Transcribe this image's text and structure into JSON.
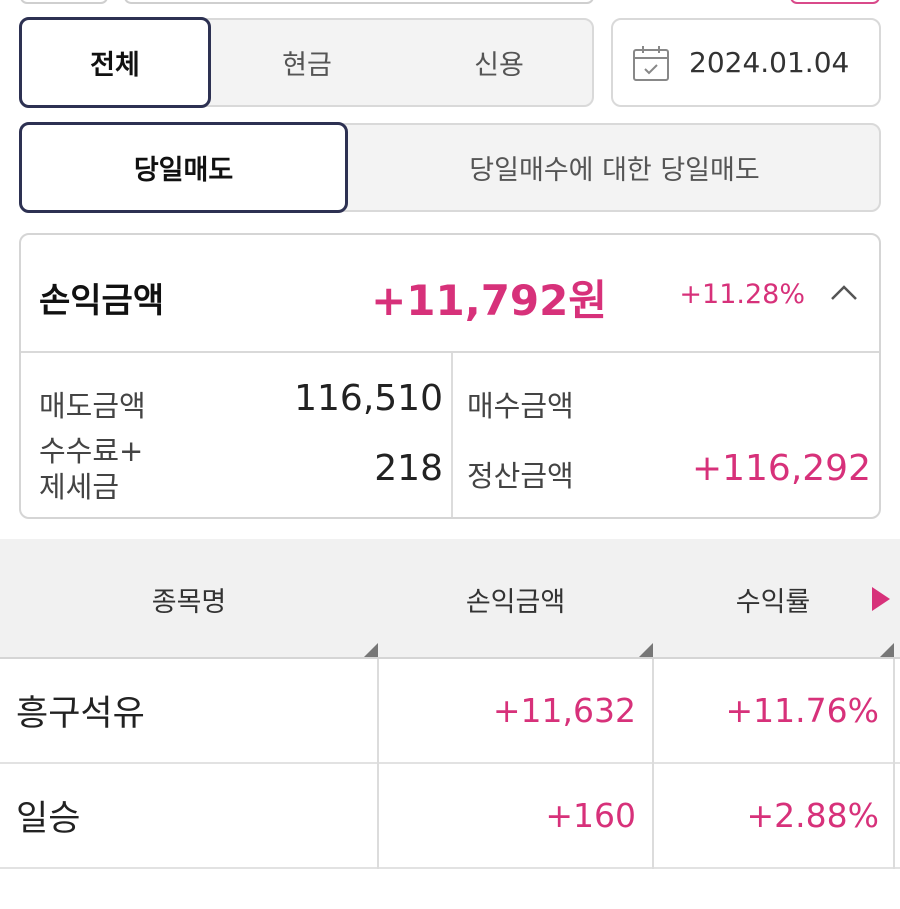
{
  "account_filter": {
    "options": [
      "전체",
      "현금",
      "신용"
    ],
    "selected": "전체"
  },
  "date_picker": {
    "value": "2024.01.04",
    "icon": "calendar-icon"
  },
  "sell_type": {
    "options": [
      "당일매도",
      "당일매수에 대한 당일매도"
    ],
    "selected": "당일매도"
  },
  "summary": {
    "label": "손익금액",
    "amount": "+11,792원",
    "rate": "+11.28%",
    "toggle_icon": "chevron-up-icon",
    "details": {
      "sell_amount_label": "매도금액",
      "sell_amount": "116,510",
      "buy_amount_label": "매수금액",
      "buy_amount": "",
      "fee_tax_label_line1": "수수료+",
      "fee_tax_label_line2": "제세금",
      "fee_tax": "218",
      "settlement_label": "정산금액",
      "settlement": "+116,292"
    }
  },
  "table": {
    "columns": [
      "종목명",
      "손익금액",
      "수익률"
    ],
    "rows": [
      {
        "name": "흥구석유",
        "profit": "+11,632",
        "rate": "+11.76%"
      },
      {
        "name": "일승",
        "profit": "+160",
        "rate": "+2.88%"
      }
    ]
  },
  "colors": {
    "accent": "#d7317a",
    "selected_border": "#2d3152"
  }
}
